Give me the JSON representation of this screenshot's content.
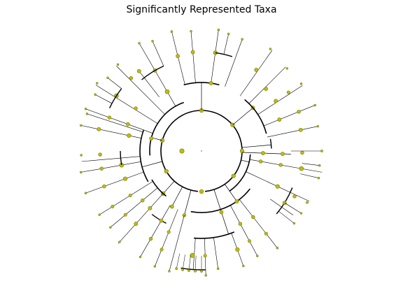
{
  "title": "Significantly Represented Taxa",
  "colors": {
    "node_fill": "#bdbd0f",
    "node_stroke": "#7a7a00",
    "branch": "#000000",
    "background": "#ffffff"
  },
  "legend": []
}
